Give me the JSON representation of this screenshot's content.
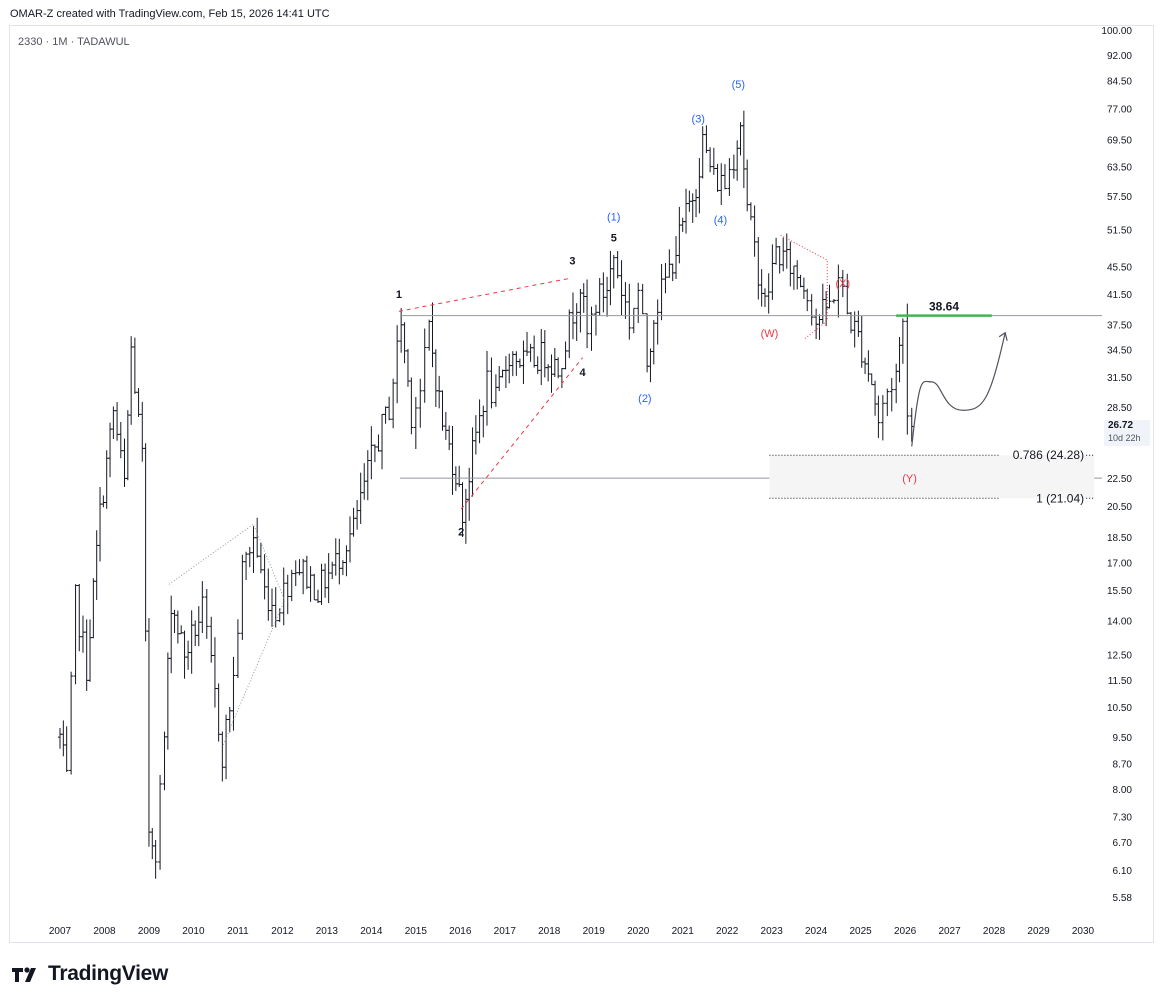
{
  "header": {
    "attribution": "OMAR-Z created with TradingView.com, Feb 15, 2026 14:41 UTC"
  },
  "symbol": {
    "label": "2330 · 1M · TADAWUL"
  },
  "brand": {
    "name": "TradingView"
  },
  "last_price": {
    "value": "26.72",
    "countdown": "10d 22h"
  },
  "colors": {
    "bar": "#131722",
    "blue": "#2962ff",
    "red": "#f23645",
    "green": "#4caf50",
    "grid": "#b2b5be"
  },
  "chart_data": {
    "type": "ohlc-bar",
    "x_axis": {
      "ticks": [
        "2007",
        "2008",
        "2009",
        "2010",
        "2011",
        "2012",
        "2013",
        "2014",
        "2015",
        "2016",
        "2017",
        "2018",
        "2019",
        "2020",
        "2021",
        "2022",
        "2023",
        "2024",
        "2025",
        "2026",
        "2027",
        "2028",
        "2029",
        "2030"
      ]
    },
    "y_axis": {
      "scale": "log",
      "range": [
        5.3,
        100
      ],
      "ticks": [
        "100.00",
        "92.00",
        "84.50",
        "77.00",
        "69.50",
        "63.50",
        "57.50",
        "51.50",
        "45.50",
        "41.50",
        "37.50",
        "34.50",
        "31.50",
        "28.50",
        "25.50",
        "22.50",
        "20.50",
        "18.50",
        "17.00",
        "15.50",
        "14.00",
        "12.50",
        "11.50",
        "10.50",
        "9.50",
        "8.70",
        "8.00",
        "7.30",
        "6.70",
        "6.10",
        "5.58"
      ]
    },
    "highlighted_ticks": [
      "25.50"
    ],
    "waypoints": [
      [
        2007.0,
        9.5
      ],
      [
        2007.15,
        8.2
      ],
      [
        2007.35,
        15.0
      ],
      [
        2007.6,
        12.0
      ],
      [
        2007.9,
        20.0
      ],
      [
        2008.2,
        28.0
      ],
      [
        2008.45,
        22.0
      ],
      [
        2008.6,
        34.5
      ],
      [
        2008.85,
        24.0
      ],
      [
        2009.0,
        7.0
      ],
      [
        2009.15,
        6.6
      ],
      [
        2009.35,
        9.5
      ],
      [
        2009.5,
        15.0
      ],
      [
        2009.8,
        12.5
      ],
      [
        2010.2,
        14.5
      ],
      [
        2010.4,
        12.0
      ],
      [
        2010.65,
        9.0
      ],
      [
        2010.9,
        11.5
      ],
      [
        2011.1,
        16.5
      ],
      [
        2011.35,
        18.5
      ],
      [
        2011.6,
        15.5
      ],
      [
        2011.85,
        14.5
      ],
      [
        2012.3,
        17.0
      ],
      [
        2012.8,
        15.5
      ],
      [
        2013.2,
        17.0
      ],
      [
        2013.6,
        19.0
      ],
      [
        2014.0,
        24.0
      ],
      [
        2014.4,
        28.5
      ],
      [
        2014.67,
        38.0
      ],
      [
        2014.9,
        28.0
      ],
      [
        2015.1,
        30.0
      ],
      [
        2015.3,
        37.0
      ],
      [
        2015.6,
        27.0
      ],
      [
        2015.9,
        23.0
      ],
      [
        2016.05,
        20.0
      ],
      [
        2016.35,
        26.0
      ],
      [
        2016.6,
        31.0
      ],
      [
        2016.8,
        29.0
      ],
      [
        2017.1,
        34.0
      ],
      [
        2017.5,
        33.0
      ],
      [
        2017.9,
        34.0
      ],
      [
        2018.2,
        32.5
      ],
      [
        2018.45,
        37.5
      ],
      [
        2018.7,
        43.0
      ],
      [
        2018.85,
        36.0
      ],
      [
        2019.05,
        40.5
      ],
      [
        2019.3,
        42.5
      ],
      [
        2019.45,
        47.0
      ],
      [
        2019.8,
        38.0
      ],
      [
        2020.0,
        42.0
      ],
      [
        2020.2,
        33.0
      ],
      [
        2020.35,
        39.0
      ],
      [
        2020.7,
        45.0
      ],
      [
        2021.0,
        52.0
      ],
      [
        2021.3,
        60.0
      ],
      [
        2021.45,
        69.0
      ],
      [
        2021.7,
        61.0
      ],
      [
        2021.95,
        60.0
      ],
      [
        2022.15,
        66.0
      ],
      [
        2022.3,
        74.0
      ],
      [
        2022.45,
        55.0
      ],
      [
        2022.7,
        45.0
      ],
      [
        2022.85,
        40.0
      ],
      [
        2023.1,
        48.0
      ],
      [
        2023.5,
        45.0
      ],
      [
        2023.8,
        42.0
      ],
      [
        2024.0,
        38.0
      ],
      [
        2024.3,
        40.0
      ],
      [
        2024.5,
        44.0
      ],
      [
        2024.7,
        39.0
      ],
      [
        2024.95,
        36.0
      ],
      [
        2025.25,
        31.0
      ],
      [
        2025.4,
        27.0
      ],
      [
        2025.6,
        30.0
      ],
      [
        2025.8,
        32.0
      ],
      [
        2025.95,
        37.5
      ],
      [
        2026.05,
        29.0
      ],
      [
        2026.15,
        26.72
      ]
    ],
    "labels": [
      {
        "text": "1",
        "color": "black",
        "x": 2014.62,
        "y": 41.0
      },
      {
        "text": "2",
        "color": "black",
        "x": 2016.02,
        "y": 18.6
      },
      {
        "text": "3",
        "color": "black",
        "x": 2018.52,
        "y": 45.8
      },
      {
        "text": "4",
        "color": "black",
        "x": 2018.75,
        "y": 31.6
      },
      {
        "text": "5",
        "color": "black",
        "x": 2019.45,
        "y": 49.5
      },
      {
        "text": "(1)",
        "color": "blue",
        "x": 2019.45,
        "y": 53.0
      },
      {
        "text": "(2)",
        "color": "blue",
        "x": 2020.15,
        "y": 29.0
      },
      {
        "text": "(3)",
        "color": "blue",
        "x": 2021.35,
        "y": 73.5
      },
      {
        "text": "(4)",
        "color": "blue",
        "x": 2021.85,
        "y": 52.5
      },
      {
        "text": "(5)",
        "color": "blue",
        "x": 2022.25,
        "y": 82.5
      },
      {
        "text": "(W)",
        "color": "red",
        "x": 2022.95,
        "y": 36.0
      },
      {
        "text": "(X)",
        "color": "red",
        "x": 2024.6,
        "y": 42.5
      },
      {
        "text": "(Y)",
        "color": "red",
        "x": 2026.1,
        "y": 22.2
      }
    ],
    "levels": [
      {
        "label": "0.786 (24.28)",
        "value": 24.28,
        "from": 2022.95,
        "to": 2030.25
      },
      {
        "label": "1 (21.04)",
        "value": 21.04,
        "from": 2022.95,
        "to": 2030.25
      }
    ],
    "horizontal_lines": [
      38.64,
      22.5
    ],
    "resistance": {
      "label": "38.64",
      "value": 38.64,
      "from": 2025.8,
      "to": 2027.95
    },
    "projection": [
      [
        2026.15,
        25.0
      ],
      [
        2026.6,
        31.0
      ],
      [
        2027.3,
        28.2
      ],
      [
        2027.9,
        30.0
      ],
      [
        2028.25,
        36.5
      ]
    ]
  }
}
